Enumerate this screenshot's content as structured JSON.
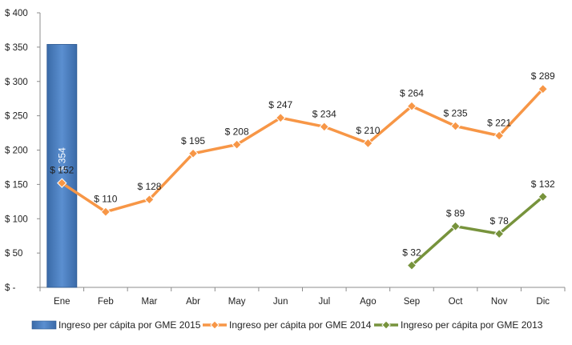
{
  "chart_data": {
    "type": "line",
    "categories": [
      "Ene",
      "Feb",
      "Mar",
      "Abr",
      "May",
      "Jun",
      "Jul",
      "Ago",
      "Sep",
      "Oct",
      "Nov",
      "Dic"
    ],
    "y_ticks": [
      "$ -",
      "$ 50",
      "$ 100",
      "$ 150",
      "$ 200",
      "$ 250",
      "$ 300",
      "$ 350",
      "$ 400"
    ],
    "ylim": [
      0,
      400
    ],
    "grid": false,
    "legend_position": "bottom",
    "series": [
      {
        "name": "Ingreso per cápita por GME 2015",
        "type": "bar",
        "color": "#4a7ebb",
        "values": [
          354,
          null,
          null,
          null,
          null,
          null,
          null,
          null,
          null,
          null,
          null,
          null
        ],
        "labels": [
          "$ 354",
          null,
          null,
          null,
          null,
          null,
          null,
          null,
          null,
          null,
          null,
          null
        ]
      },
      {
        "name": "Ingreso per cápita por GME 2014",
        "type": "line",
        "color": "#f79646",
        "marker": "diamond",
        "values": [
          152,
          110,
          128,
          195,
          208,
          247,
          234,
          210,
          264,
          235,
          221,
          289
        ],
        "labels": [
          "$ 152",
          "$ 110",
          "$ 128",
          "$ 195",
          "$ 208",
          "$ 247",
          "$ 234",
          "$ 210",
          "$ 264",
          "$ 235",
          "$ 221",
          "$ 289"
        ]
      },
      {
        "name": "Ingreso per cápita por GME 2013",
        "type": "line",
        "color": "#77933c",
        "marker": "diamond",
        "values": [
          null,
          null,
          null,
          null,
          null,
          null,
          null,
          null,
          32,
          89,
          78,
          132
        ],
        "labels": [
          null,
          null,
          null,
          null,
          null,
          null,
          null,
          null,
          "$ 32",
          "$ 89",
          "$ 78",
          "$ 132"
        ]
      }
    ]
  }
}
